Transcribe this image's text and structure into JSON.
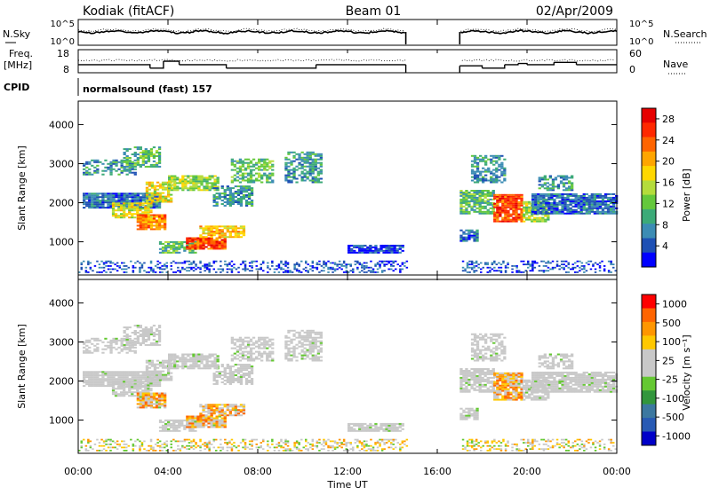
{
  "header": {
    "station": "Kodiak (fitACF)",
    "beam": "Beam 01",
    "date": "02/Apr/2009"
  },
  "top_panels": {
    "left_labels": [
      "N.Sky",
      "Freq.",
      "[MHz]",
      "CPID"
    ],
    "right_labels": [
      "N.Search",
      "Nave"
    ],
    "noise_ticks_left": [
      "10^5",
      "10^0"
    ],
    "noise_ticks_right": [
      "10^5",
      "10^0"
    ],
    "freq_ticks_left": [
      "18",
      "8"
    ],
    "nave_ticks_right": [
      "60",
      "0"
    ],
    "cpid_text": "normalsound (fast) 157"
  },
  "colors": {
    "power_scale": [
      "#0000ff",
      "#1e50b4",
      "#3c8cb4",
      "#3caa78",
      "#64c83c",
      "#b4dc3c",
      "#ffd700",
      "#ffa500",
      "#ff6400",
      "#ff2800",
      "#e60000"
    ],
    "velocity_scale": [
      "#0000c8",
      "#285ab4",
      "#3c78a0",
      "#32963c",
      "#64c832",
      "#c8c8c8",
      "#c8c8c8",
      "#ffc800",
      "#ff9600",
      "#ff6400",
      "#ff0000"
    ]
  },
  "chart_data": [
    {
      "type": "heatmap",
      "panel": "power",
      "xlabel": "Time UT",
      "ylabel": "Slant Range [km]",
      "x_ticks": [
        "00:00",
        "04:00",
        "08:00",
        "12:00",
        "16:00",
        "20:00",
        "00:00"
      ],
      "y_ticks": [
        "1000",
        "2000",
        "3000",
        "4000"
      ],
      "ylim": [
        150,
        4600
      ],
      "xlim_hours": [
        0,
        24
      ],
      "colorbar_label": "Power [dB]",
      "colorbar_ticks": [
        "4",
        "8",
        "12",
        "16",
        "20",
        "24",
        "28"
      ],
      "colorbar_range": [
        0,
        30
      ],
      "data_gap_hours": [
        14.6,
        17.0
      ]
    },
    {
      "type": "heatmap",
      "panel": "velocity",
      "xlabel": "Time UT",
      "ylabel": "Slant Range [km]",
      "x_ticks": [
        "00:00",
        "04:00",
        "08:00",
        "12:00",
        "16:00",
        "20:00",
        "00:00"
      ],
      "y_ticks": [
        "1000",
        "2000",
        "3000",
        "4000"
      ],
      "ylim": [
        150,
        4600
      ],
      "xlim_hours": [
        0,
        24
      ],
      "colorbar_label": "Velocity [m s⁻¹]",
      "colorbar_ticks": [
        "1000",
        "500",
        "100",
        "25",
        "-25",
        "-100",
        "-500",
        "-1000"
      ],
      "data_gap_hours": [
        14.6,
        17.0
      ]
    }
  ]
}
